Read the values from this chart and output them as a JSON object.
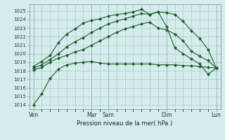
{
  "bg_color": "#d4ecec",
  "grid_color": "#a0c4c4",
  "line_color": "#1a5c28",
  "ylim": [
    1013.5,
    1025.8
  ],
  "yticks": [
    1014,
    1015,
    1016,
    1017,
    1018,
    1019,
    1020,
    1021,
    1022,
    1023,
    1024,
    1025
  ],
  "xlabel": "Pression niveau de la mer( hPa )",
  "xtick_labels": [
    "Ven",
    "Mar",
    "Sam",
    "Dim",
    "Lun"
  ],
  "xtick_positions": [
    0,
    7,
    9,
    16,
    22
  ],
  "vlines": [
    0,
    7,
    9,
    16,
    22
  ],
  "n_points": 23,
  "line1": [
    1014.0,
    1015.3,
    1017.1,
    1018.2,
    1018.7,
    1018.9,
    1019.0,
    1019.1,
    1018.9,
    1018.8,
    1018.8,
    1018.8,
    1018.8,
    1018.8,
    1018.8,
    1018.7,
    1018.7,
    1018.7,
    1018.6,
    1018.6,
    1018.5,
    1018.4,
    1018.3
  ],
  "line2": [
    1018.1,
    1018.4,
    1019.0,
    1019.5,
    1019.8,
    1020.2,
    1020.5,
    1021.0,
    1021.5,
    1022.0,
    1022.5,
    1022.9,
    1023.2,
    1023.5,
    1023.7,
    1023.0,
    1022.8,
    1022.3,
    1021.5,
    1020.3,
    1019.7,
    1019.2,
    1018.3
  ],
  "line3": [
    1018.3,
    1018.7,
    1019.3,
    1020.0,
    1020.8,
    1021.4,
    1021.9,
    1022.5,
    1023.0,
    1023.5,
    1023.8,
    1024.1,
    1024.4,
    1024.7,
    1024.6,
    1024.9,
    1024.8,
    1024.6,
    1023.8,
    1022.7,
    1021.8,
    1020.5,
    1018.3
  ],
  "line4": [
    1018.5,
    1019.1,
    1019.8,
    1021.3,
    1022.3,
    1022.9,
    1023.6,
    1023.9,
    1024.1,
    1024.4,
    1024.6,
    1024.7,
    1024.9,
    1025.2,
    1024.6,
    1024.9,
    1023.2,
    1020.7,
    1020.0,
    1019.4,
    1018.8,
    1017.6,
    1018.3
  ],
  "marker": "D",
  "markersize": 2.2,
  "linewidth": 0.8,
  "title_fontsize": 6,
  "tick_fontsize": 5,
  "xlabel_fontsize": 6
}
